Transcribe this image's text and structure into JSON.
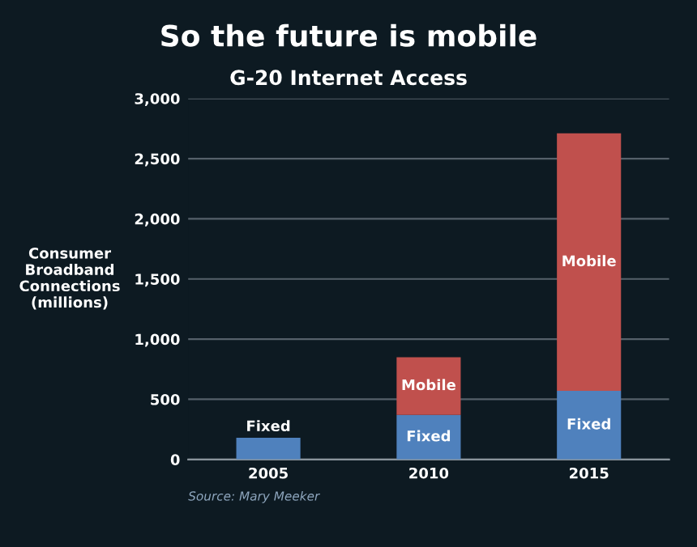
{
  "chart_data": {
    "type": "bar",
    "stacked": true,
    "title": "So the future is mobile",
    "subtitle": "G-20 Internet Access",
    "ylabel": "Consumer\nBroadband\nConnections\n(millions)",
    "categories": [
      "2005",
      "2010",
      "2015"
    ],
    "series": [
      {
        "name": "Fixed",
        "color": "#4f81bd",
        "values": [
          180,
          370,
          570
        ]
      },
      {
        "name": "Mobile",
        "color": "#c0504d",
        "values": [
          0,
          480,
          2140
        ]
      }
    ],
    "ylim": [
      0,
      3000
    ],
    "yticks": [
      0,
      {
        "value": 500,
        "label": "500"
      },
      {
        "value": 1000,
        "label": "1,000"
      },
      {
        "value": 1500,
        "label": "1,500"
      },
      {
        "value": 2000,
        "label": "2,000"
      },
      {
        "value": 2500,
        "label": "2,500"
      },
      {
        "value": 3000,
        "label": "3,000"
      }
    ],
    "grid": "y",
    "legend": false,
    "annotations": [
      "Source: Mary Meeker"
    ]
  }
}
